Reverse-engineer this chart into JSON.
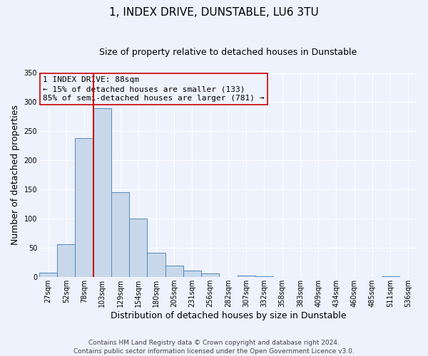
{
  "title": "1, INDEX DRIVE, DUNSTABLE, LU6 3TU",
  "subtitle": "Size of property relative to detached houses in Dunstable",
  "xlabel": "Distribution of detached houses by size in Dunstable",
  "ylabel": "Number of detached properties",
  "bar_values": [
    8,
    57,
    238,
    290,
    145,
    100,
    42,
    20,
    11,
    6,
    0,
    3,
    2,
    0,
    0,
    0,
    0,
    0,
    0,
    2,
    0
  ],
  "bin_labels": [
    "27sqm",
    "52sqm",
    "78sqm",
    "103sqm",
    "129sqm",
    "154sqm",
    "180sqm",
    "205sqm",
    "231sqm",
    "256sqm",
    "282sqm",
    "307sqm",
    "332sqm",
    "358sqm",
    "383sqm",
    "409sqm",
    "434sqm",
    "460sqm",
    "485sqm",
    "511sqm",
    "536sqm"
  ],
  "bar_color": "#c8d8ea",
  "bar_edge_color": "#5588bb",
  "vline_color": "#cc0000",
  "vline_bin_index": 2,
  "ylim": [
    0,
    350
  ],
  "yticks": [
    0,
    50,
    100,
    150,
    200,
    250,
    300,
    350
  ],
  "annotation_title": "1 INDEX DRIVE: 88sqm",
  "annotation_line1": "← 15% of detached houses are smaller (133)",
  "annotation_line2": "85% of semi-detached houses are larger (781) →",
  "annotation_box_color": "#cc0000",
  "footer_line1": "Contains HM Land Registry data © Crown copyright and database right 2024.",
  "footer_line2": "Contains public sector information licensed under the Open Government Licence v3.0.",
  "background_color": "#eef2fc",
  "grid_color": "#ffffff",
  "title_fontsize": 11,
  "subtitle_fontsize": 9,
  "axis_label_fontsize": 9,
  "tick_fontsize": 7,
  "annotation_fontsize": 8,
  "footer_fontsize": 6.5
}
